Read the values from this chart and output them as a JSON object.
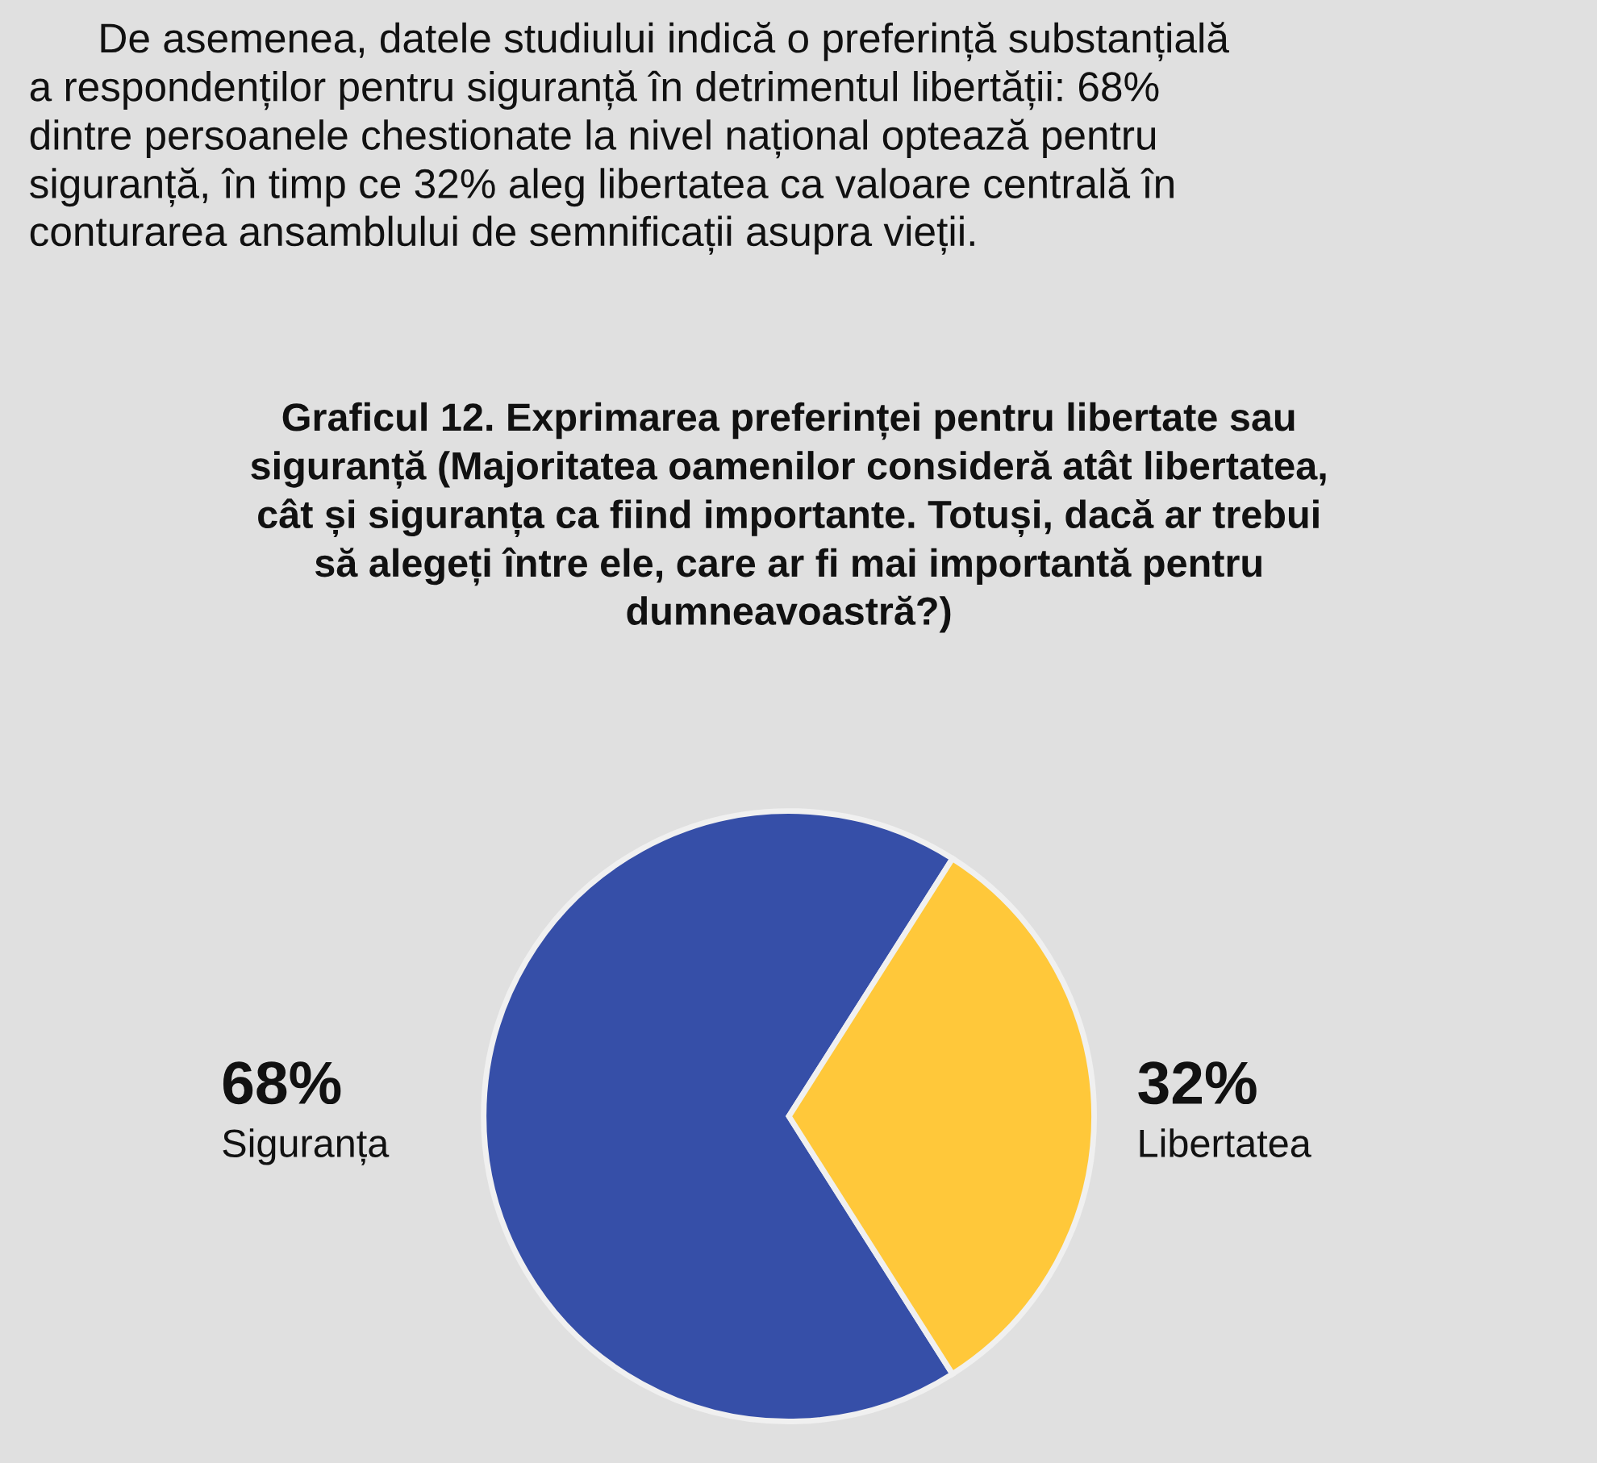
{
  "chart_data": {
    "type": "pie",
    "title": "Graficul 12. Exprimarea preferinței pentru libertate sau\nsiguranță (Majoritatea oamenilor consideră atât libertatea,\ncât și siguranța ca fiind importante. Totuși, dacă ar trebui\nsă alegeți între ele, care ar fi mai importantă pentru\ndumneavoastră?)",
    "annotations": [
      "      De asemenea, datele studiului indică o preferință substanțială\na respondenților pentru siguranță în detrimentul libertății: 68%\ndintre persoanele chestionate la nivel național optează pentru\nsiguranță, în timp ce 32% aleg libertatea ca valoare centrală în\nconturarea ansamblului de semnificații asupra vieții."
    ],
    "categories": [
      "Siguranța",
      "Libertatea"
    ],
    "values": [
      68,
      32
    ],
    "colors": [
      "#364fa8",
      "#ffc83a"
    ],
    "value_labels": [
      "68%",
      "32%"
    ]
  }
}
